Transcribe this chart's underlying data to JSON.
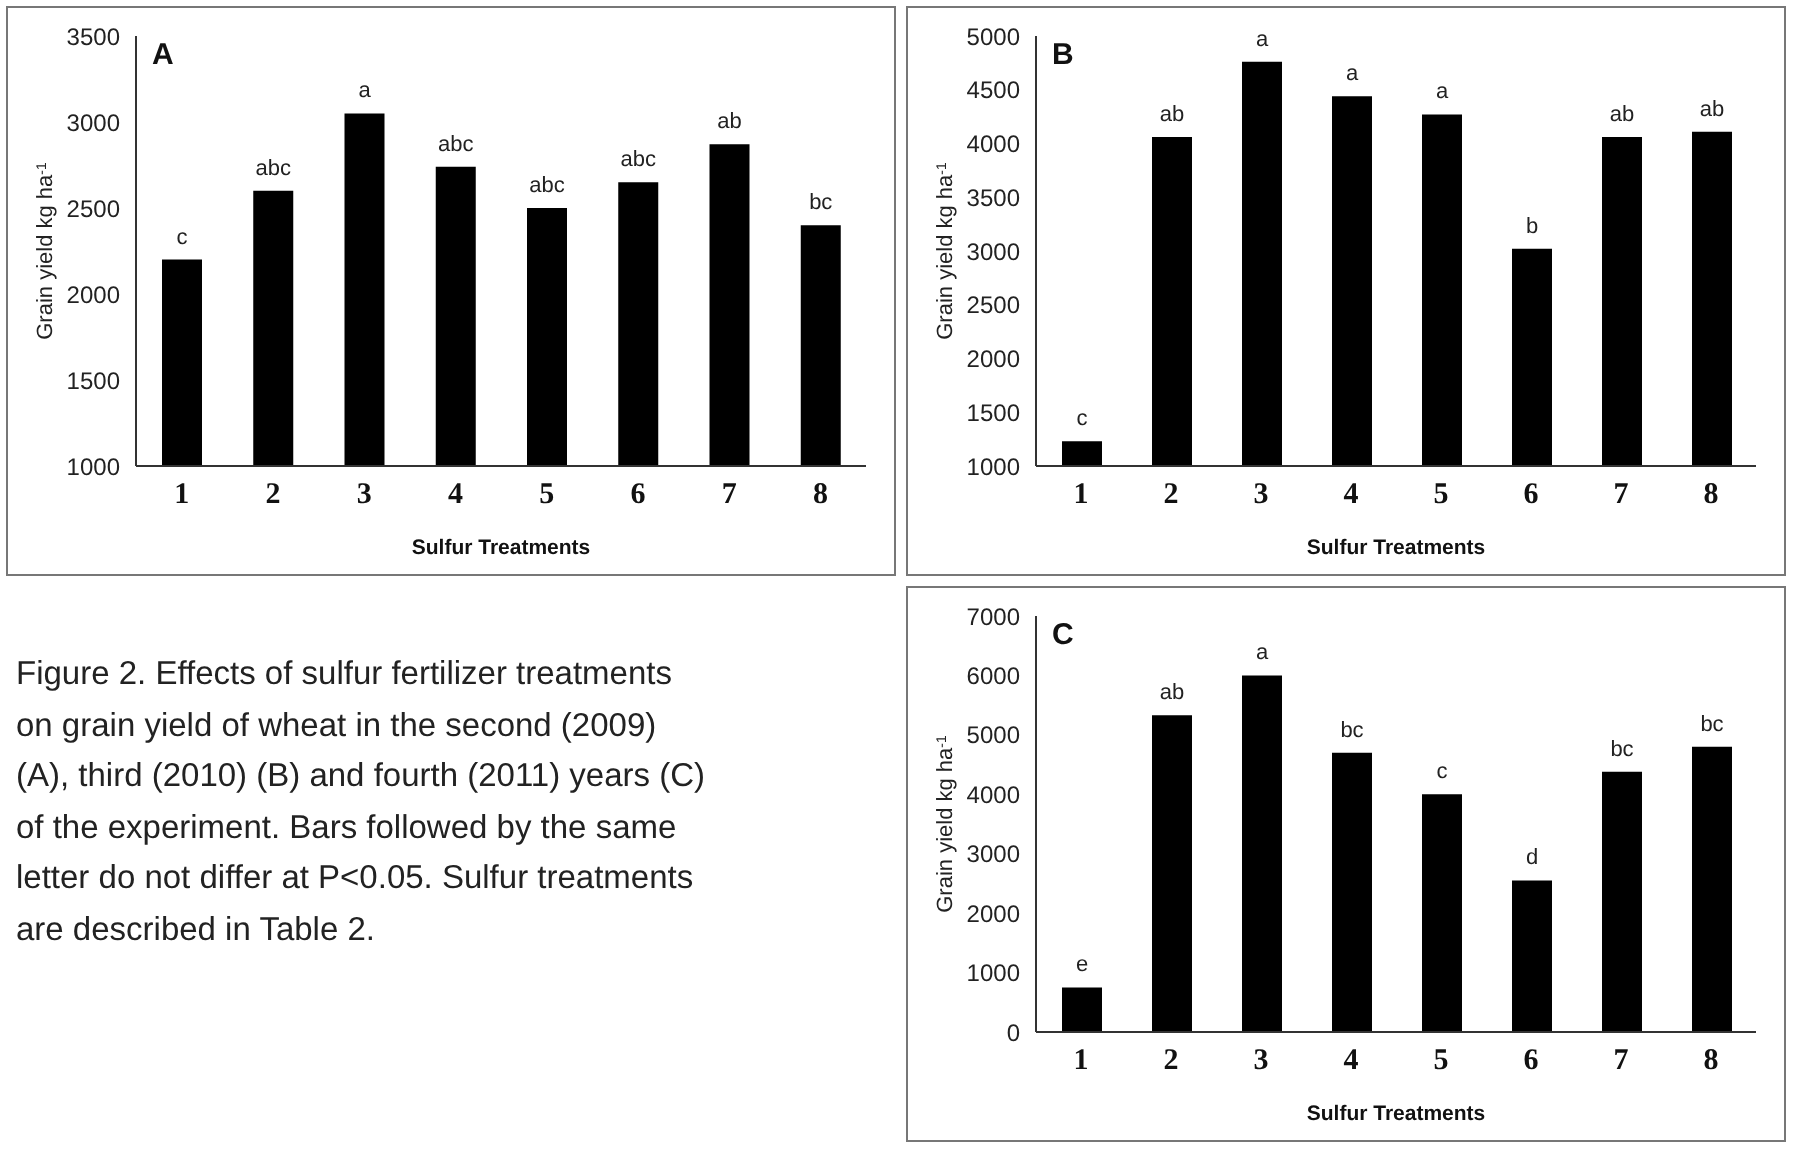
{
  "chart_data": [
    {
      "type": "bar",
      "title": "A",
      "xlabel": "Sulfur Treatments",
      "ylabel": "Grain yield kg ha$^{-1}$",
      "categories": [
        "1",
        "2",
        "3",
        "4",
        "5",
        "6",
        "7",
        "8"
      ],
      "values": [
        2200,
        2600,
        3050,
        2740,
        2500,
        2650,
        2870,
        2400
      ],
      "color": "#000000",
      "value_labels": [
        "c",
        "abc",
        "a",
        "abc",
        "abc",
        "abc",
        "ab",
        "bc"
      ],
      "ylim": [
        1000,
        3500
      ],
      "yticks": [
        1000,
        1500,
        2000,
        2500,
        3000,
        3500
      ],
      "grid": false,
      "legend": false
    },
    {
      "type": "bar",
      "title": "B",
      "xlabel": "Sulfur Treatments",
      "ylabel": "Grain yield kg ha$^{-1}$",
      "categories": [
        "1",
        "2",
        "3",
        "4",
        "5",
        "6",
        "7",
        "8"
      ],
      "values": [
        1230,
        4060,
        4760,
        4440,
        4270,
        3020,
        4060,
        4110
      ],
      "color": "#000000",
      "value_labels": [
        "c",
        "ab",
        "a",
        "a",
        "a",
        "b",
        "ab",
        "ab"
      ],
      "ylim": [
        1000,
        5000
      ],
      "yticks": [
        1000,
        1500,
        2000,
        2500,
        3000,
        3500,
        4000,
        4500,
        5000
      ],
      "grid": false,
      "legend": false
    },
    {
      "type": "other",
      "annotations": [
        "Figure 2. Effects of sulfur fertilizer treatments on grain yield of wheat in the second (2009) (A), third (2010) (B) and fourth (2011) years (C) of the experiment. Bars followed by the same letter do not differ at P<0.05. Sulfur treatments are described in Table 2."
      ]
    },
    {
      "type": "bar",
      "title": "C",
      "xlabel": "Sulfur Treatments",
      "ylabel": "Grain yield kg ha$^{-1}$",
      "categories": [
        "1",
        "2",
        "3",
        "4",
        "5",
        "6",
        "7",
        "8"
      ],
      "values": [
        750,
        5330,
        6000,
        4700,
        4000,
        2550,
        4380,
        4800
      ],
      "color": "#000000",
      "value_labels": [
        "e",
        "ab",
        "a",
        "bc",
        "c",
        "d",
        "bc",
        "bc"
      ],
      "ylim": [
        0,
        7000
      ],
      "yticks": [
        0,
        1000,
        2000,
        3000,
        4000,
        5000,
        6000,
        7000
      ],
      "grid": false,
      "legend": false
    }
  ]
}
